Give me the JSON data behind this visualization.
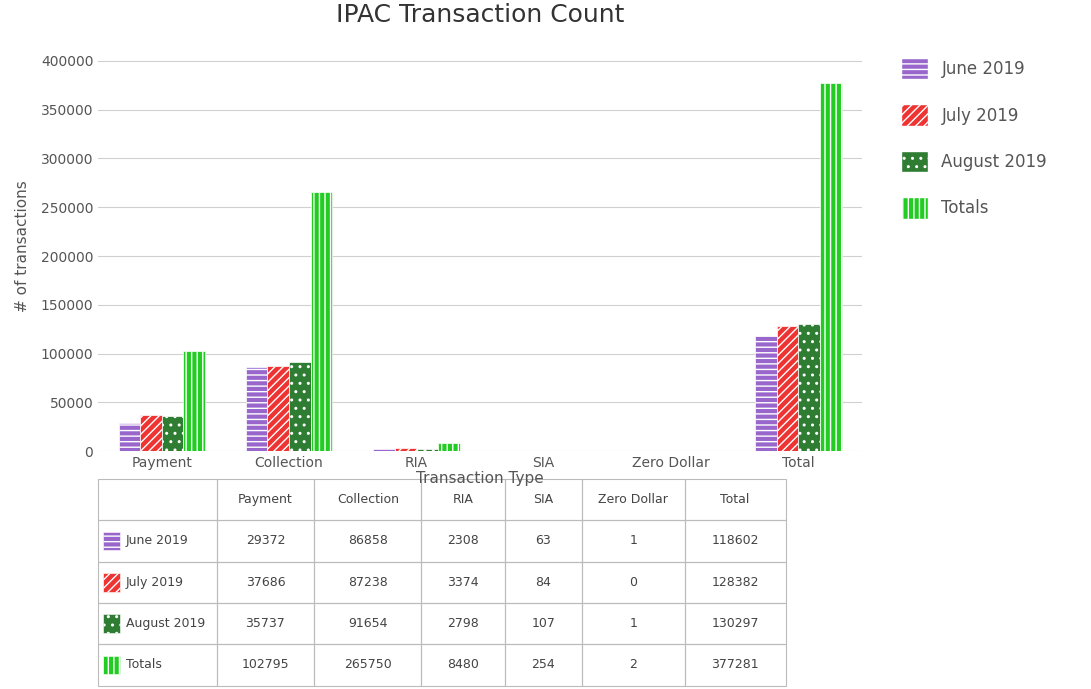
{
  "title": "IPAC Transaction Count",
  "xlabel": "Transaction Type",
  "ylabel": "# of transactions",
  "categories": [
    "Payment",
    "Collection",
    "RIA",
    "SIA",
    "Zero Dollar",
    "Total"
  ],
  "series": {
    "June 2019": [
      29372,
      86858,
      2308,
      63,
      1,
      118602
    ],
    "July 2019": [
      37686,
      87238,
      3374,
      84,
      0,
      128382
    ],
    "August 2019": [
      35737,
      91654,
      2798,
      107,
      1,
      130297
    ],
    "Totals": [
      102795,
      265750,
      8480,
      254,
      2,
      377281
    ]
  },
  "ylim": [
    0,
    420000
  ],
  "yticks": [
    0,
    50000,
    100000,
    150000,
    200000,
    250000,
    300000,
    350000,
    400000
  ],
  "table_data": [
    [
      "",
      "Payment",
      "Collection",
      "RIA",
      "SIA",
      "Zero Dollar",
      "Total"
    ],
    [
      "June 2019",
      "29372",
      "86858",
      "2308",
      "63",
      "1",
      "118602"
    ],
    [
      "July 2019",
      "37686",
      "87238",
      "3374",
      "84",
      "0",
      "128382"
    ],
    [
      "August 2019",
      "35737",
      "91654",
      "2798",
      "107",
      "1",
      "130297"
    ],
    [
      "Totals",
      "102795",
      "265750",
      "8480",
      "254",
      "2",
      "377281"
    ]
  ],
  "background_color": "#FFFFFF",
  "grid_color": "#D0D0D0",
  "title_fontsize": 18,
  "axis_fontsize": 11,
  "tick_fontsize": 10,
  "legend_fontsize": 12,
  "table_fontsize": 9
}
